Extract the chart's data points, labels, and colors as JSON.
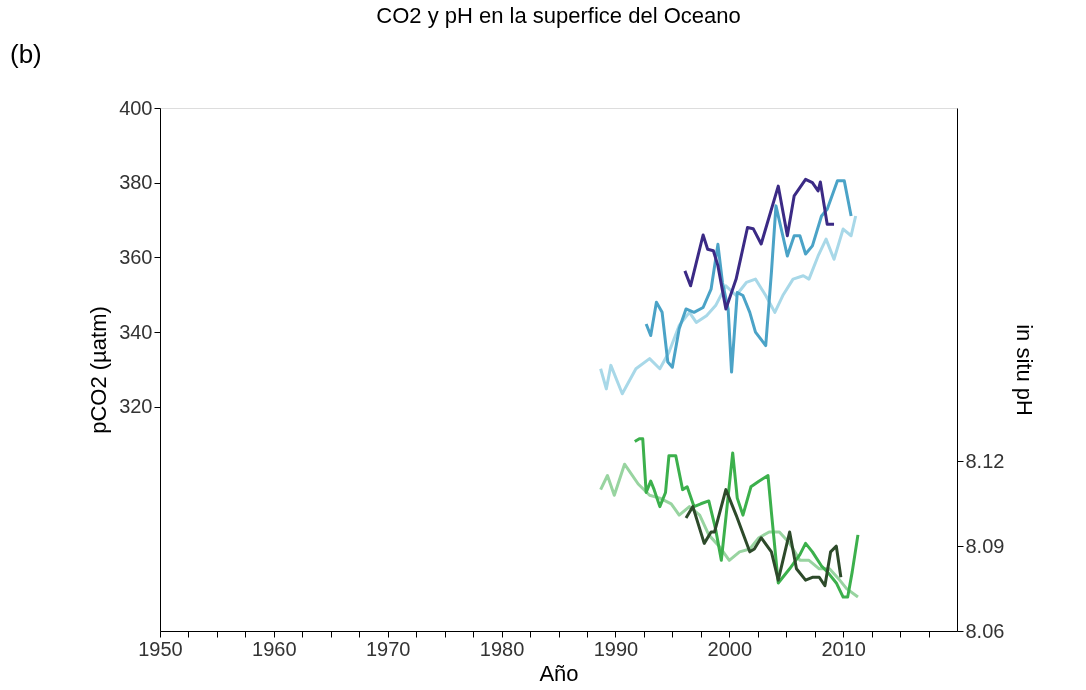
{
  "chart_data": {
    "type": "line",
    "title": "CO2 y pH en la superfice del Oceano",
    "xlabel": "Año",
    "ylabel": "pCO2 (µatm)",
    "y2label": "in situ pH",
    "annotations": [
      "(b)"
    ],
    "xlim": [
      1950,
      2020
    ],
    "xticks": [
      1950,
      {
        "value": 1952.5,
        "label": null
      },
      {
        "value": 1955,
        "label": null
      },
      {
        "value": 1957.5,
        "label": null
      },
      1960,
      {
        "value": 1962.5,
        "label": null
      },
      {
        "value": 1965,
        "label": null
      },
      {
        "value": 1967.5,
        "label": null
      },
      1970,
      {
        "value": 1972.5,
        "label": null
      },
      {
        "value": 1975,
        "label": null
      },
      {
        "value": 1977.5,
        "label": null
      },
      1980,
      {
        "value": 1982.5,
        "label": null
      },
      {
        "value": 1985,
        "label": null
      },
      {
        "value": 1987.5,
        "label": null
      },
      1990,
      {
        "value": 1992.5,
        "label": null
      },
      {
        "value": 1995,
        "label": null
      },
      {
        "value": 1997.5,
        "label": null
      },
      2000,
      {
        "value": 2002.5,
        "label": null
      },
      {
        "value": 2005,
        "label": null
      },
      {
        "value": 2007.5,
        "label": null
      },
      2010,
      {
        "value": 2012.5,
        "label": null
      },
      {
        "value": 2015,
        "label": null
      },
      {
        "value": 2017.5,
        "label": null
      }
    ],
    "ylim": [
      260,
      400
    ],
    "yticks": [
      320,
      340,
      360,
      380,
      400
    ],
    "y2lim": [
      8.06,
      8.245
    ],
    "y2ticks": [
      8.06,
      8.09,
      8.12
    ],
    "grid": false,
    "legend": false,
    "marker": "none",
    "line_style": "solid",
    "series": [
      {
        "color": "#a8d8e8",
        "x": [
          1988.7,
          1989.2,
          1989.6,
          1990.6,
          1991.8,
          1993.0,
          1993.9,
          1994.7,
          1995.6,
          1996.5,
          1997.1,
          1998.0,
          1998.8,
          1999.7,
          2000.6,
          2001.5,
          2002.3,
          2003.2,
          2004.0,
          2004.7,
          2005.6,
          2006.5,
          2007.0,
          2007.8,
          2008.5,
          2009.2,
          2010.0,
          2010.7,
          2011.1
        ],
        "values": [
          330.2,
          324.8,
          331.1,
          323.5,
          330.2,
          332.9,
          330.2,
          334.6,
          341.8,
          345.3,
          342.6,
          344.4,
          347.1,
          352.4,
          349.8,
          353.3,
          354.2,
          349.8,
          345.3,
          349.8,
          354.2,
          355.1,
          354.2,
          360.4,
          364.9,
          359.5,
          367.6,
          365.8,
          371.1
        ]
      },
      {
        "color": "#4ba3c7",
        "x": [
          1992.7,
          1993.1,
          1993.6,
          1994.1,
          1994.6,
          1995.0,
          1995.6,
          1996.2,
          1996.9,
          1997.7,
          1998.4,
          1999.0,
          1999.4,
          1999.9,
          2000.2,
          2000.7,
          2001.2,
          2001.8,
          2002.3,
          2003.2,
          2003.7,
          2004.1,
          2004.7,
          2005.1,
          2005.7,
          2006.2,
          2006.7,
          2007.3,
          2008.1,
          2008.6,
          2009.5,
          2010.1,
          2010.7
        ],
        "values": [
          342.2,
          339.1,
          348.0,
          345.3,
          332.0,
          330.6,
          340.9,
          346.2,
          345.3,
          346.6,
          351.5,
          363.5,
          353.3,
          346.2,
          329.3,
          350.6,
          349.8,
          345.3,
          340.0,
          336.4,
          356.0,
          373.8,
          365.8,
          360.4,
          365.8,
          365.8,
          360.9,
          363.1,
          371.1,
          372.9,
          380.5,
          380.5,
          371.1
        ]
      },
      {
        "color": "#3b2a85",
        "x": [
          1996.1,
          1996.6,
          1997.7,
          1998.1,
          1998.6,
          1999.0,
          1999.7,
          2000.6,
          2001.6,
          2002.1,
          2002.8,
          2004.3,
          2005.1,
          2005.7,
          2006.7,
          2007.3,
          2007.8,
          2008.0,
          2008.6,
          2009.2
        ],
        "values": [
          356.4,
          352.4,
          366.0,
          362.2,
          361.8,
          357.8,
          346.2,
          354.2,
          368.0,
          367.7,
          363.6,
          379.1,
          365.8,
          376.5,
          380.9,
          380.0,
          377.8,
          380.2,
          368.9,
          368.9
        ]
      },
      {
        "color": "#98d4a0",
        "axis": "y2",
        "x": [
          1988.7,
          1989.3,
          1989.9,
          1990.8,
          1992.0,
          1993.0,
          1993.9,
          1994.9,
          1995.6,
          1996.5,
          1997.4,
          1998.2,
          1999.1,
          2000.0,
          2000.9,
          2001.8,
          2002.6,
          2003.5,
          2004.4,
          2005.3,
          2006.2,
          2007.0,
          2007.9,
          2008.8,
          2009.7,
          2010.3,
          2011.3
        ],
        "values": [
          8.11,
          8.115,
          8.108,
          8.119,
          8.112,
          8.108,
          8.107,
          8.105,
          8.101,
          8.104,
          8.101,
          8.094,
          8.09,
          8.085,
          8.088,
          8.089,
          8.093,
          8.095,
          8.095,
          8.091,
          8.085,
          8.085,
          8.082,
          8.082,
          8.078,
          8.075,
          8.072
        ]
      },
      {
        "color": "#3cb04c",
        "axis": "y2",
        "x": [
          1991.7,
          1992.1,
          1992.4,
          1992.7,
          1993.1,
          1993.4,
          1993.9,
          1994.4,
          1994.7,
          1995.3,
          1995.9,
          1996.3,
          1996.9,
          1997.5,
          1998.2,
          1998.8,
          1999.3,
          1999.7,
          2000.3,
          2000.7,
          2001.2,
          2001.9,
          2002.6,
          2003.4,
          2003.7,
          2004.3,
          2005.3,
          2006.2,
          2006.7,
          2007.3,
          2008.1,
          2008.6,
          2009.4,
          2010.0,
          2010.4,
          2010.8,
          2011.3
        ],
        "values": [
          8.127,
          8.128,
          8.128,
          8.109,
          8.113,
          8.11,
          8.104,
          8.109,
          8.122,
          8.122,
          8.11,
          8.111,
          8.104,
          8.105,
          8.106,
          8.096,
          8.085,
          8.1,
          8.123,
          8.107,
          8.101,
          8.111,
          8.113,
          8.115,
          8.102,
          8.077,
          8.082,
          8.087,
          8.091,
          8.088,
          8.083,
          8.081,
          8.077,
          8.072,
          8.072,
          8.081,
          8.094
        ]
      },
      {
        "color": "#2d4a2a",
        "axis": "y2",
        "x": [
          1996.2,
          1996.8,
          1997.8,
          1998.4,
          1998.7,
          1999.7,
          2000.6,
          2001.8,
          2002.2,
          2002.8,
          2003.7,
          2004.3,
          2005.3,
          2005.9,
          2006.7,
          2007.3,
          2007.9,
          2008.4,
          2008.9,
          2009.4,
          2009.8
        ],
        "values": [
          8.1,
          8.104,
          8.091,
          8.095,
          8.095,
          8.11,
          8.101,
          8.088,
          8.089,
          8.093,
          8.088,
          8.078,
          8.095,
          8.082,
          8.078,
          8.079,
          8.079,
          8.076,
          8.088,
          8.09,
          8.079
        ]
      }
    ]
  }
}
